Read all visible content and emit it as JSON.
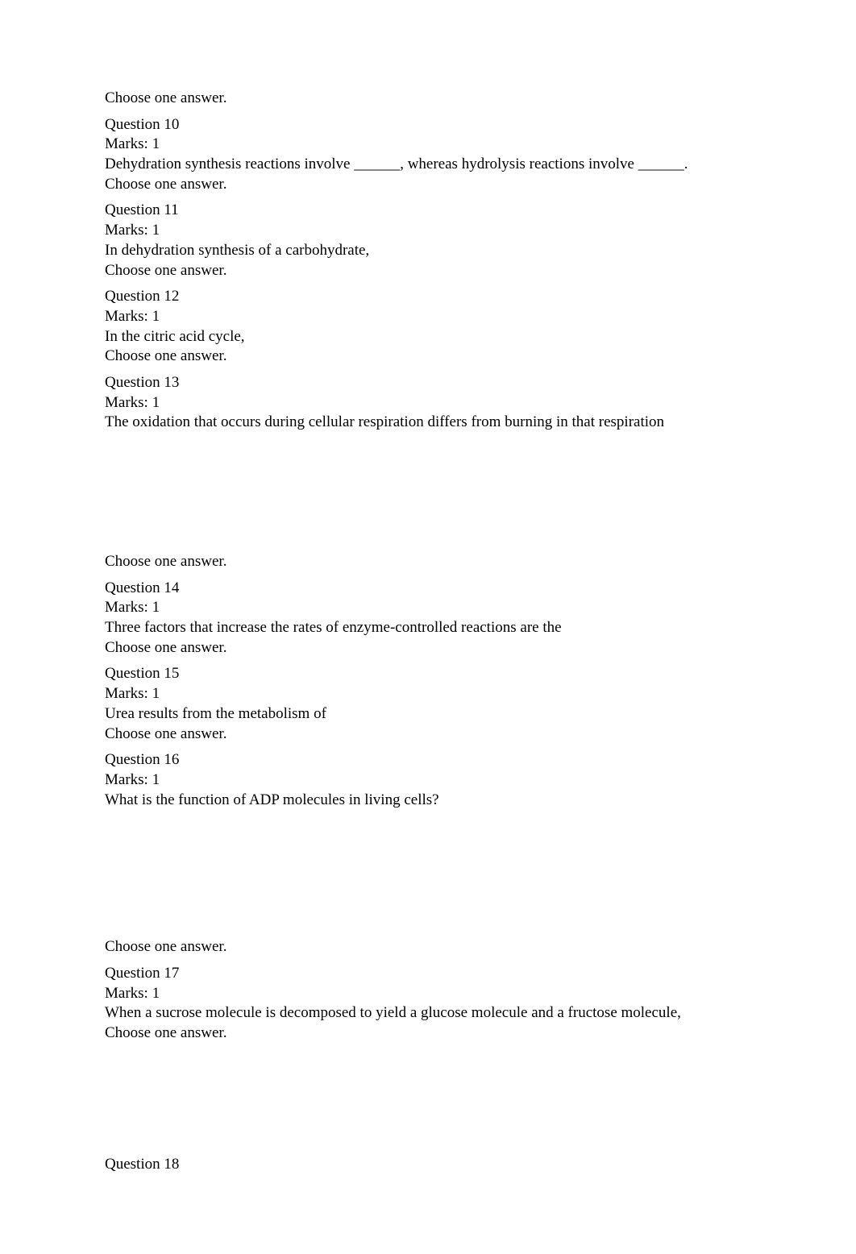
{
  "choose_text": "Choose one answer.",
  "marks_text": "Marks: 1",
  "questions": [
    {
      "number": "Question 10",
      "text": "Dehydration synthesis reactions involve ______, whereas hydrolysis reactions involve ______."
    },
    {
      "number": "Question 11",
      "text": "In dehydration synthesis of a carbohydrate,"
    },
    {
      "number": "Question 12",
      "text": "In the citric acid cycle,"
    },
    {
      "number": "Question 13",
      "text": "The oxidation that occurs during cellular respiration differs from burning in that respiration"
    },
    {
      "number": "Question 14",
      "text": "Three factors that increase the rates of enzyme-controlled reactions are the"
    },
    {
      "number": "Question 15",
      "text": "Urea results from the metabolism of"
    },
    {
      "number": "Question 16",
      "text": "What is the function of ADP molecules in living cells?"
    },
    {
      "number": "Question 17",
      "text": "When a sucrose molecule is decomposed to yield a glucose molecule and a fructose molecule,"
    },
    {
      "number": "Question 18",
      "text": ""
    }
  ]
}
